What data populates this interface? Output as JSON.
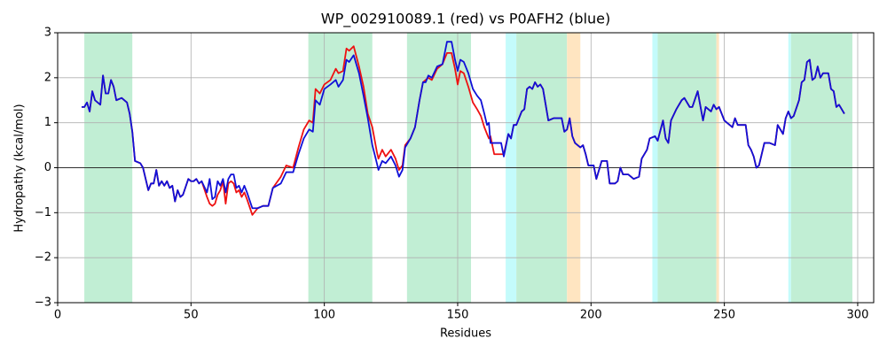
{
  "chart_data": {
    "type": "line",
    "title": "WP_002910089.1 (red) vs P0AFH2 (blue)",
    "xlabel": "Residues",
    "ylabel": "Hydropathy (kcal/mol)",
    "xlim": [
      0,
      306
    ],
    "ylim": [
      -3,
      3
    ],
    "xticks": [
      0,
      50,
      100,
      150,
      200,
      250,
      300
    ],
    "yticks": [
      {
        "value": -3,
        "label": "−3"
      },
      {
        "value": -2,
        "label": "−2"
      },
      {
        "value": -1,
        "label": "−1"
      },
      0,
      1,
      2,
      3
    ],
    "grid": true,
    "hline": 0,
    "spans": [
      {
        "start": 10,
        "end": 28,
        "color": "#c1eed4"
      },
      {
        "start": 94,
        "end": 118,
        "color": "#c1eed4"
      },
      {
        "start": 131,
        "end": 155,
        "color": "#c1eed4"
      },
      {
        "start": 168,
        "end": 172,
        "color": "#c4fbfb"
      },
      {
        "start": 172,
        "end": 191,
        "color": "#c1eed4"
      },
      {
        "start": 191,
        "end": 196,
        "color": "#ffe5c1"
      },
      {
        "start": 223,
        "end": 225,
        "color": "#c4fbfb"
      },
      {
        "start": 225,
        "end": 247,
        "color": "#c1eed4"
      },
      {
        "start": 247,
        "end": 248,
        "color": "#ffe5c1"
      },
      {
        "start": 274,
        "end": 275,
        "color": "#c4fbfb"
      },
      {
        "start": 275,
        "end": 298,
        "color": "#c1eed4"
      }
    ],
    "x": [
      9,
      10,
      11,
      12,
      13,
      14,
      16,
      17,
      18,
      19,
      20,
      21,
      22,
      24,
      26,
      27,
      28,
      29,
      31,
      32,
      34,
      35,
      36,
      37,
      38,
      39,
      40,
      41,
      42,
      43,
      44,
      45,
      46,
      47,
      49,
      50,
      51,
      52,
      53,
      54,
      56,
      57,
      58,
      59,
      60,
      61,
      62,
      63,
      64,
      65,
      66,
      67,
      68,
      69,
      70,
      71,
      73,
      75,
      77,
      79,
      80.7,
      83.7,
      85.7,
      88.3,
      90.3,
      92.3,
      94.3,
      95.7,
      96.7,
      98.3,
      100,
      102.3,
      104.3,
      105.3,
      107,
      108.3,
      109.3,
      111,
      113,
      114.7,
      116.3,
      118,
      119.7,
      120.3,
      121.7,
      123,
      125,
      126.7,
      128,
      129.3,
      130.3,
      132.3,
      134,
      135.7,
      137,
      138,
      139,
      140.3,
      142.3,
      144.3,
      146,
      147.7,
      149,
      150,
      151,
      152.3,
      154,
      155.7,
      157.3,
      158.7,
      160,
      161,
      161.7,
      162.3,
      163.7,
      166.3,
      167.3,
      169,
      170,
      171,
      172,
      174,
      175,
      176,
      177,
      178,
      179,
      180,
      181,
      182,
      183,
      184,
      186,
      189,
      190,
      191,
      192,
      193,
      194,
      196,
      197,
      198,
      199,
      201,
      202,
      204,
      206,
      207,
      209,
      210,
      211,
      212,
      214,
      216,
      218,
      219,
      221,
      222,
      224,
      225,
      227,
      228,
      229,
      230,
      232,
      234,
      235,
      237,
      238,
      240,
      242,
      243,
      245,
      246,
      247,
      248,
      250,
      252,
      253,
      254,
      255,
      258,
      259,
      260,
      261,
      262,
      263,
      264,
      265,
      267,
      269,
      270,
      272,
      273,
      274,
      275,
      276,
      278,
      279,
      280,
      281,
      282,
      283,
      284,
      285,
      286,
      287,
      289,
      290,
      291,
      292,
      293,
      295
    ],
    "series": [
      {
        "color": "#ee1111",
        "values": [
          1.35,
          1.35,
          1.45,
          1.25,
          1.7,
          1.5,
          1.4,
          2.05,
          1.65,
          1.65,
          1.95,
          1.8,
          1.5,
          1.55,
          1.45,
          1.2,
          0.8,
          0.15,
          0.1,
          0.0,
          -0.5,
          -0.35,
          -0.35,
          -0.05,
          -0.4,
          -0.3,
          -0.4,
          -0.3,
          -0.45,
          -0.4,
          -0.75,
          -0.5,
          -0.65,
          -0.6,
          -0.25,
          -0.3,
          -0.3,
          -0.25,
          -0.35,
          -0.3,
          -0.65,
          -0.8,
          -0.85,
          -0.8,
          -0.6,
          -0.5,
          -0.3,
          -0.8,
          -0.35,
          -0.3,
          -0.35,
          -0.55,
          -0.5,
          -0.65,
          -0.55,
          -0.7,
          -1.05,
          -0.9,
          -0.85,
          -0.85,
          -0.45,
          -0.2,
          0.05,
          0.0,
          0.45,
          0.85,
          1.05,
          1.0,
          1.75,
          1.65,
          1.85,
          1.95,
          2.2,
          2.1,
          2.15,
          2.65,
          2.6,
          2.7,
          2.25,
          1.8,
          1.2,
          0.9,
          0.35,
          0.2,
          0.4,
          0.25,
          0.4,
          0.2,
          -0.05,
          0.05,
          0.5,
          0.65,
          0.9,
          1.5,
          1.9,
          1.95,
          2.0,
          1.95,
          2.2,
          2.3,
          2.55,
          2.55,
          2.2,
          1.85,
          2.15,
          2.1,
          1.8,
          1.45,
          1.3,
          1.15,
          0.9,
          0.75,
          0.65,
          0.7,
          0.3,
          0.3,
          0.3,
          0.75,
          0.65,
          0.95,
          0.95,
          1.25,
          1.3,
          1.75,
          1.8,
          1.75,
          1.9,
          1.8,
          1.85,
          1.75,
          1.4,
          1.05,
          1.1,
          1.1,
          0.8,
          0.85,
          1.1,
          0.7,
          0.55,
          0.45,
          0.5,
          0.3,
          0.05,
          0.05,
          -0.25,
          0.15,
          0.15,
          -0.35,
          -0.35,
          -0.3,
          0.0,
          -0.15,
          -0.15,
          -0.25,
          -0.2,
          0.2,
          0.4,
          0.65,
          0.7,
          0.6,
          1.05,
          0.65,
          0.55,
          1.05,
          1.3,
          1.5,
          1.55,
          1.35,
          1.35,
          1.7,
          1.05,
          1.35,
          1.25,
          1.4,
          1.3,
          1.35,
          1.05,
          0.95,
          0.9,
          1.1,
          0.95,
          0.95,
          0.5,
          0.4,
          0.25,
          0.0,
          0.05,
          0.3,
          0.55,
          0.55,
          0.5,
          0.95,
          0.75,
          1.1,
          1.25,
          1.1,
          1.15,
          1.5,
          1.9,
          1.95,
          2.35,
          2.4,
          1.95,
          2.0,
          2.25,
          2.0,
          2.1,
          2.1,
          1.75,
          1.7,
          1.35,
          1.4,
          1.2
        ]
      },
      {
        "color": "#1010d8",
        "values": [
          1.35,
          1.35,
          1.45,
          1.25,
          1.7,
          1.5,
          1.4,
          2.05,
          1.65,
          1.65,
          1.95,
          1.8,
          1.5,
          1.55,
          1.45,
          1.2,
          0.8,
          0.15,
          0.1,
          0.0,
          -0.5,
          -0.35,
          -0.35,
          -0.05,
          -0.4,
          -0.3,
          -0.4,
          -0.3,
          -0.45,
          -0.4,
          -0.75,
          -0.5,
          -0.65,
          -0.6,
          -0.25,
          -0.3,
          -0.3,
          -0.25,
          -0.35,
          -0.3,
          -0.55,
          -0.25,
          -0.7,
          -0.65,
          -0.3,
          -0.4,
          -0.25,
          -0.55,
          -0.25,
          -0.15,
          -0.15,
          -0.45,
          -0.4,
          -0.55,
          -0.4,
          -0.55,
          -0.9,
          -0.9,
          -0.85,
          -0.85,
          -0.45,
          -0.35,
          -0.1,
          -0.1,
          0.3,
          0.65,
          0.85,
          0.8,
          1.5,
          1.4,
          1.75,
          1.85,
          1.95,
          1.8,
          1.95,
          2.4,
          2.35,
          2.5,
          2.1,
          1.6,
          1.1,
          0.5,
          0.1,
          -0.05,
          0.15,
          0.1,
          0.25,
          0.05,
          -0.2,
          -0.05,
          0.45,
          0.65,
          0.9,
          1.5,
          1.9,
          1.9,
          2.05,
          2.0,
          2.25,
          2.3,
          2.8,
          2.8,
          2.4,
          2.15,
          2.4,
          2.35,
          2.1,
          1.75,
          1.6,
          1.5,
          1.2,
          0.95,
          1.0,
          0.55,
          0.55,
          0.55,
          0.25,
          0.75,
          0.65,
          0.95,
          0.95,
          1.25,
          1.3,
          1.75,
          1.8,
          1.75,
          1.9,
          1.8,
          1.85,
          1.75,
          1.4,
          1.05,
          1.1,
          1.1,
          0.8,
          0.85,
          1.1,
          0.7,
          0.55,
          0.45,
          0.5,
          0.3,
          0.05,
          0.05,
          -0.25,
          0.15,
          0.15,
          -0.35,
          -0.35,
          -0.3,
          0.0,
          -0.15,
          -0.15,
          -0.25,
          -0.2,
          0.2,
          0.4,
          0.65,
          0.7,
          0.6,
          1.05,
          0.65,
          0.55,
          1.05,
          1.3,
          1.5,
          1.55,
          1.35,
          1.35,
          1.7,
          1.05,
          1.35,
          1.25,
          1.4,
          1.3,
          1.35,
          1.05,
          0.95,
          0.9,
          1.1,
          0.95,
          0.95,
          0.5,
          0.4,
          0.25,
          0.0,
          0.05,
          0.3,
          0.55,
          0.55,
          0.5,
          0.95,
          0.75,
          1.1,
          1.25,
          1.1,
          1.15,
          1.5,
          1.9,
          1.95,
          2.35,
          2.4,
          1.95,
          2.0,
          2.25,
          2.0,
          2.1,
          2.1,
          1.75,
          1.7,
          1.35,
          1.4,
          1.2
        ]
      }
    ]
  }
}
